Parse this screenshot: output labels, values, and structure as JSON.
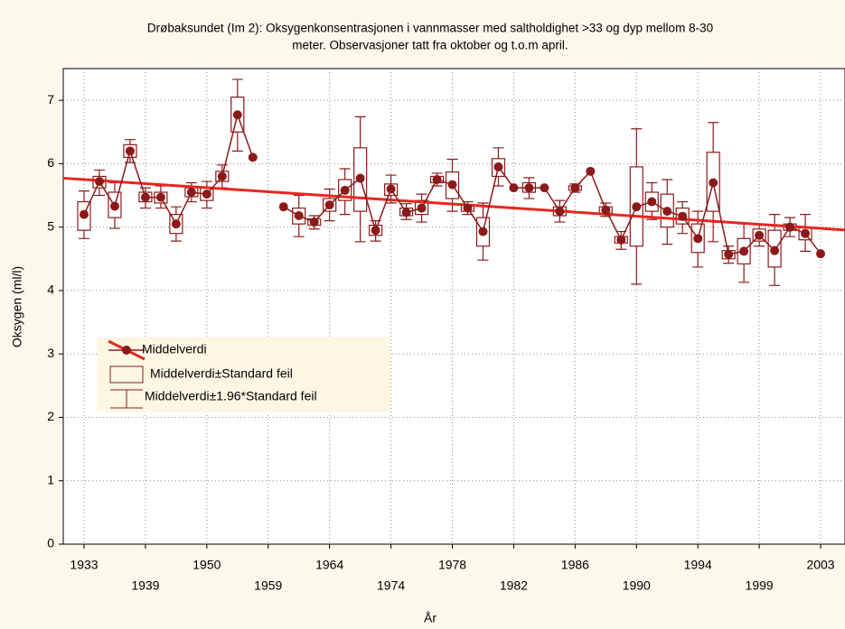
{
  "chart_data": {
    "type": "mean-box",
    "title_lines": [
      "Drøbaksundet (Im 2): Oksygenkonsentrasjonen i vannmasser med saltholdighet >33 og dyp mellom 8-30",
      "meter. Observasjoner tatt fra oktober og t.o.m april."
    ],
    "x_label": "År",
    "y_label": "Oksygen (ml/l)",
    "categories": [
      "1933",
      null,
      null,
      null,
      "1939",
      null,
      null,
      null,
      "1950",
      null,
      null,
      null,
      "1959",
      null,
      null,
      null,
      "1964",
      null,
      null,
      null,
      "1974",
      null,
      null,
      null,
      "1978",
      null,
      null,
      null,
      "1982",
      null,
      null,
      null,
      "1986",
      null,
      null,
      null,
      "1990",
      null,
      null,
      null,
      "1994",
      null,
      null,
      null,
      "1999",
      null,
      null,
      null,
      "2003"
    ],
    "series": [
      {
        "name": "Middelverdi",
        "color": "#8b1a1a",
        "values": [
          5.2,
          5.72,
          5.33,
          6.2,
          5.47,
          5.47,
          5.05,
          5.55,
          5.52,
          5.8,
          6.77,
          6.1,
          null,
          5.32,
          5.18,
          5.08,
          5.35,
          5.58,
          5.77,
          4.95,
          5.6,
          5.23,
          5.3,
          5.75,
          5.67,
          5.3,
          4.93,
          5.95,
          5.62,
          5.62,
          5.62,
          5.25,
          5.62,
          5.88,
          5.27,
          4.8,
          5.32,
          5.4,
          5.25,
          5.17,
          4.82,
          5.7,
          4.57,
          4.62,
          4.87,
          4.63,
          5.0,
          4.9,
          4.58
        ]
      },
      {
        "name": "Middelverdi±Standard feil",
        "color": "#8b1a1a",
        "low": [
          4.95,
          5.62,
          5.15,
          6.1,
          5.4,
          5.38,
          4.9,
          5.48,
          5.42,
          5.72,
          6.5,
          null,
          null,
          null,
          5.05,
          5.03,
          5.25,
          5.42,
          5.25,
          4.87,
          5.5,
          5.18,
          5.2,
          5.7,
          5.45,
          5.25,
          4.7,
          5.8,
          null,
          5.55,
          null,
          5.18,
          5.58,
          null,
          5.22,
          4.75,
          4.7,
          5.25,
          5.0,
          5.05,
          4.6,
          5.25,
          4.5,
          4.42,
          4.78,
          4.37,
          4.95,
          4.8,
          null
        ],
        "high": [
          5.4,
          5.8,
          5.55,
          6.3,
          5.55,
          5.55,
          5.2,
          5.62,
          5.62,
          5.88,
          7.05,
          null,
          null,
          null,
          5.3,
          5.13,
          5.45,
          5.75,
          6.25,
          5.03,
          5.68,
          5.3,
          5.42,
          5.8,
          5.87,
          5.35,
          5.15,
          6.08,
          null,
          5.7,
          null,
          5.32,
          5.65,
          null,
          5.32,
          4.85,
          5.95,
          5.55,
          5.52,
          5.3,
          5.05,
          6.18,
          4.63,
          4.82,
          4.97,
          4.95,
          5.05,
          5.0,
          null
        ]
      },
      {
        "name": "Middelverdi±1.96*Standard feil",
        "color": "#8b1a1a",
        "low": [
          4.82,
          5.5,
          4.98,
          6.02,
          5.3,
          5.3,
          4.78,
          5.4,
          5.3,
          5.62,
          6.2,
          null,
          null,
          null,
          4.85,
          4.97,
          5.1,
          5.2,
          4.77,
          4.78,
          5.38,
          5.12,
          5.08,
          5.65,
          5.25,
          5.2,
          4.48,
          5.65,
          null,
          5.45,
          null,
          5.08,
          5.55,
          null,
          5.17,
          4.65,
          4.1,
          5.12,
          4.73,
          4.9,
          4.37,
          4.77,
          4.43,
          4.13,
          4.7,
          4.08,
          4.85,
          4.62,
          null
        ],
        "high": [
          5.57,
          5.9,
          5.7,
          6.38,
          5.62,
          5.65,
          5.32,
          5.7,
          5.72,
          5.98,
          7.33,
          null,
          null,
          null,
          5.5,
          5.18,
          5.6,
          5.92,
          6.74,
          5.1,
          5.82,
          5.37,
          5.52,
          5.85,
          6.07,
          5.4,
          5.38,
          6.25,
          null,
          5.78,
          null,
          5.42,
          5.68,
          null,
          5.38,
          4.93,
          6.55,
          5.7,
          5.75,
          5.4,
          5.25,
          6.65,
          4.7,
          5.05,
          5.05,
          5.2,
          5.15,
          5.2,
          null
        ]
      }
    ],
    "trend": {
      "color": "#e8261f",
      "values": [
        5.75,
        4.98
      ]
    },
    "ylim": [
      0,
      7.5
    ],
    "yticks": [
      0,
      1,
      2,
      3,
      4,
      5,
      6,
      7
    ],
    "grid": true
  }
}
